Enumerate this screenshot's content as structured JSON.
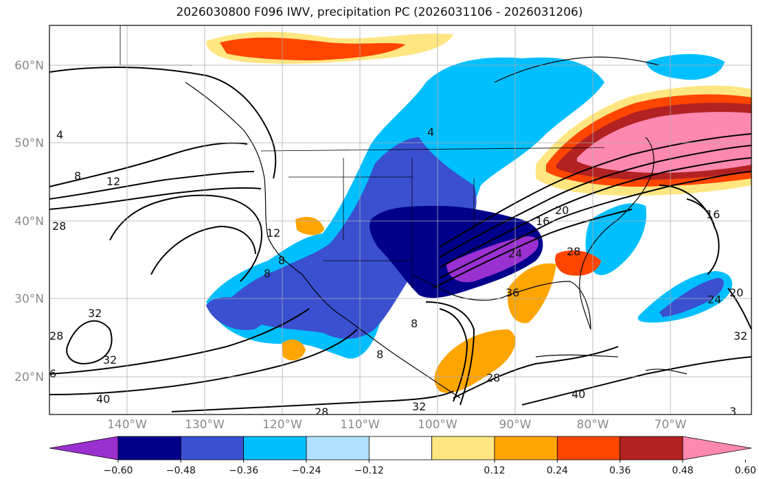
{
  "title": "2026030800 F096 IWV, precipitation PC (2026031106 - 2026031206)",
  "lat_labels": [
    "60°N",
    "50°N",
    "40°N",
    "30°N",
    "20°N"
  ],
  "lon_labels": [
    "140°W",
    "130°W",
    "120°W",
    "110°W",
    "100°W",
    "90°W",
    "80°W",
    "70°W"
  ],
  "contour_labels": [
    "8",
    "12",
    "28",
    "4",
    "12",
    "8",
    "8",
    "32",
    "28",
    "32",
    "40",
    "6",
    "32",
    "28",
    "4",
    "16",
    "20",
    "28",
    "24",
    "36",
    "8",
    "8",
    "28",
    "40",
    "20",
    "16",
    "24",
    "32",
    "3"
  ],
  "colorbar": {
    "ticks": [
      "−0.60",
      "−0.48",
      "−0.36",
      "−0.24",
      "−0.12",
      "0.12",
      "0.24",
      "0.36",
      "0.48",
      "0.60"
    ],
    "colors": [
      "#9b30d0",
      "#00008b",
      "#3a50d0",
      "#00bfff",
      "#b0e0ff",
      "#ffffff",
      "#ffe680",
      "#ffa500",
      "#ff4500",
      "#b22222",
      "#ff88b0"
    ]
  }
}
